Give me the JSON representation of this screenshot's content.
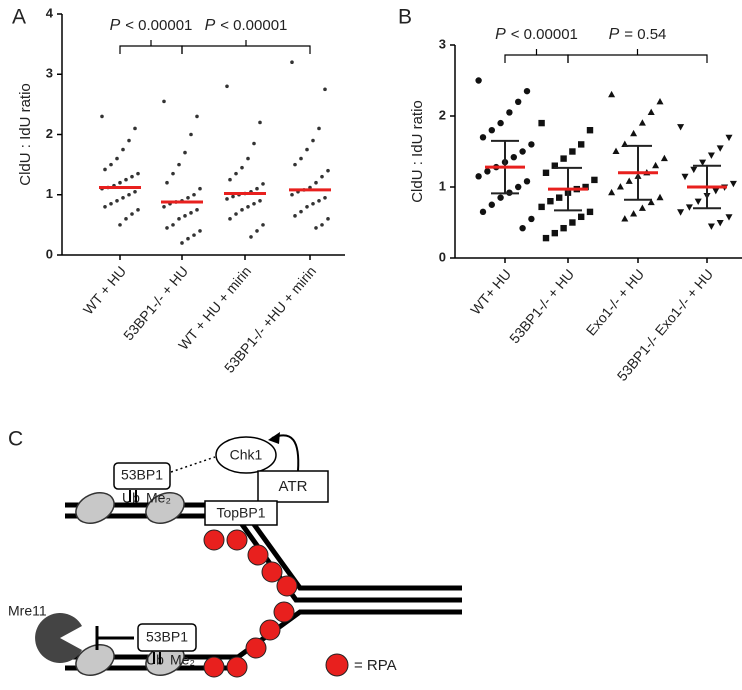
{
  "chart_data": [
    {
      "type": "dotplot",
      "panel": "A",
      "ylabel": "CldU : IdU ratio",
      "categories": [
        "WT + HU",
        "53BP1-/- + HU",
        "WT + HU + mirin",
        "53BP1-/- +HU + mirin"
      ],
      "medians": [
        1.12,
        0.88,
        1.02,
        1.08
      ],
      "points": [
        [
          2.3,
          2.1,
          1.9,
          1.75,
          1.6,
          1.5,
          1.42,
          1.35,
          1.3,
          1.25,
          1.2,
          1.15,
          1.12,
          1.1,
          1.05,
          1.0,
          0.95,
          0.9,
          0.85,
          0.8,
          0.75,
          0.68,
          0.6,
          0.5
        ],
        [
          2.55,
          2.3,
          2.0,
          1.7,
          1.5,
          1.35,
          1.2,
          1.1,
          1.0,
          0.95,
          0.9,
          0.88,
          0.85,
          0.8,
          0.75,
          0.7,
          0.65,
          0.6,
          0.5,
          0.45,
          0.4,
          0.33,
          0.27,
          0.2
        ],
        [
          2.8,
          2.2,
          1.85,
          1.6,
          1.45,
          1.35,
          1.25,
          1.18,
          1.1,
          1.05,
          1.02,
          1.0,
          0.97,
          0.93,
          0.9,
          0.85,
          0.8,
          0.75,
          0.68,
          0.6,
          0.5,
          0.4,
          0.3
        ],
        [
          3.2,
          2.75,
          2.1,
          1.9,
          1.75,
          1.6,
          1.5,
          1.4,
          1.3,
          1.2,
          1.12,
          1.08,
          1.05,
          1.0,
          0.95,
          0.9,
          0.85,
          0.8,
          0.72,
          0.65,
          0.6,
          0.5,
          0.45
        ]
      ],
      "markers": [
        "circle",
        "circle",
        "circle",
        "circle"
      ],
      "color": "#333333",
      "median_color": "#e8201e",
      "ylim": [
        0,
        4
      ],
      "yticks": [
        0,
        1,
        2,
        3,
        4
      ],
      "annotations": [
        {
          "symbol": "P",
          "text": "< 0.00001"
        },
        {
          "symbol": "P",
          "text": "< 0.00001"
        }
      ]
    },
    {
      "type": "dotplot",
      "panel": "B",
      "ylabel": "CldU : IdU ratio",
      "categories": [
        "WT+ HU",
        "53BP1-/- + HU",
        "Exo1-/- + HU",
        "53BP1-/- Exo1-/- + HU"
      ],
      "medians": [
        1.28,
        0.97,
        1.2,
        1.0
      ],
      "errors": [
        0.37,
        0.3,
        0.38,
        0.3
      ],
      "points": [
        [
          2.5,
          2.35,
          2.2,
          2.05,
          1.9,
          1.8,
          1.7,
          1.6,
          1.5,
          1.42,
          1.35,
          1.28,
          1.22,
          1.15,
          1.08,
          1.0,
          0.92,
          0.85,
          0.75,
          0.65,
          0.55,
          0.42
        ],
        [
          1.9,
          1.8,
          1.6,
          1.5,
          1.4,
          1.3,
          1.2,
          1.1,
          1.0,
          0.97,
          0.92,
          0.85,
          0.8,
          0.72,
          0.65,
          0.58,
          0.5,
          0.42,
          0.35,
          0.28
        ],
        [
          2.3,
          2.2,
          2.05,
          1.9,
          1.75,
          1.6,
          1.5,
          1.4,
          1.3,
          1.2,
          1.15,
          1.08,
          1.0,
          0.92,
          0.85,
          0.78,
          0.7,
          0.62,
          0.55
        ],
        [
          1.85,
          1.7,
          1.55,
          1.45,
          1.35,
          1.25,
          1.15,
          1.05,
          1.0,
          0.95,
          0.88,
          0.8,
          0.72,
          0.65,
          0.58,
          0.5,
          0.45
        ]
      ],
      "markers": [
        "circle",
        "square",
        "triangle-up",
        "triangle-down"
      ],
      "color": "#111111",
      "median_color": "#e8201e",
      "ylim": [
        0,
        3
      ],
      "yticks": [
        0,
        1,
        2,
        3
      ],
      "annotations": [
        {
          "symbol": "P",
          "text": "< 0.00001"
        },
        {
          "symbol": "P",
          "text": "= 0.54"
        }
      ]
    }
  ],
  "diagram": {
    "panel": "C",
    "top_53bp1": "53BP1",
    "top_ub": "Ub",
    "top_me": "Me₂",
    "chk1": "Chk1",
    "atr": "ATR",
    "topbp1": "TopBP1",
    "mre11": "Mre11",
    "bottom_53bp1": "53BP1",
    "bottom_ub": "Ub",
    "bottom_me": "Me₂",
    "rpa_legend": "= RPA"
  }
}
